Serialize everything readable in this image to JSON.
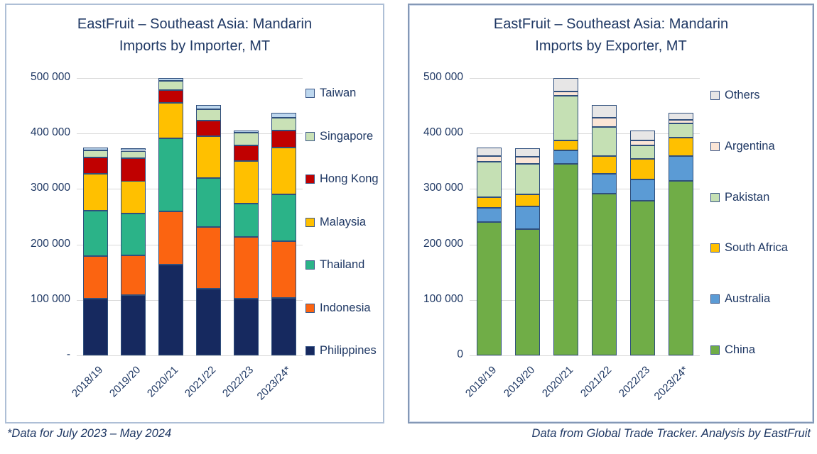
{
  "footer": {
    "left_note": "*Data for July 2023 – May 2024",
    "right_note": "Data from Global Trade Tracker. Analysis by EastFruit"
  },
  "colors": {
    "text": "#1F3864",
    "gridline": "#D9D9D9",
    "bar_stroke": "#2F4F7D",
    "panel_border_left": "#AEBFD6",
    "panel_border_right": "#8498B6"
  },
  "chart_data": [
    {
      "type": "bar",
      "stacked": true,
      "title_line1": "EastFruit – Southeast Asia: Mandarin",
      "title_line2": "Imports by Importer, MT",
      "categories": [
        "2018/19",
        "2019/20",
        "2020/21",
        "2021/22",
        "2022/23",
        "2023/24*"
      ],
      "ylim": [
        0,
        500000
      ],
      "grid": true,
      "legend_position": "right",
      "y_ticks": [
        {
          "value": 500000,
          "label": "500 000"
        },
        {
          "value": 400000,
          "label": "400 000"
        },
        {
          "value": 300000,
          "label": "300 000"
        },
        {
          "value": 200000,
          "label": "200 000"
        },
        {
          "value": 100000,
          "label": "100 000"
        },
        {
          "value": 0,
          "label": "-"
        }
      ],
      "series": [
        {
          "name": "Philippines",
          "color": "#16295F",
          "values": [
            102000,
            109000,
            164000,
            120000,
            102000,
            104000
          ]
        },
        {
          "name": "Indonesia",
          "color": "#FB6411",
          "values": [
            77000,
            71000,
            96000,
            112000,
            112000,
            102000
          ]
        },
        {
          "name": "Thailand",
          "color": "#2BB388",
          "values": [
            82000,
            76000,
            132000,
            88000,
            60000,
            84000
          ]
        },
        {
          "name": "Malaysia",
          "color": "#FFC000",
          "values": [
            66000,
            58000,
            63000,
            75000,
            76000,
            85000
          ]
        },
        {
          "name": "Hong Kong",
          "color": "#C00000",
          "values": [
            30000,
            41000,
            23000,
            28000,
            29000,
            30000
          ]
        },
        {
          "name": "Singapore",
          "color": "#C9E1B6",
          "values": [
            13000,
            14000,
            17000,
            21000,
            22000,
            23000
          ]
        },
        {
          "name": "Taiwan",
          "color": "#BDD7EE",
          "values": [
            5000,
            5000,
            5000,
            7000,
            5000,
            9000
          ]
        }
      ],
      "legend": [
        "Taiwan",
        "Singapore",
        "Hong Kong",
        "Malaysia",
        "Thailand",
        "Indonesia",
        "Philippines"
      ]
    },
    {
      "type": "bar",
      "stacked": true,
      "title_line1": "EastFruit – Southeast Asia: Mandarin",
      "title_line2": "Imports by Exporter, MT",
      "categories": [
        "2018/19",
        "2019/20",
        "2020/21",
        "2021/22",
        "2022/23",
        "2023/24*"
      ],
      "ylim": [
        0,
        500000
      ],
      "grid": true,
      "legend_position": "right",
      "y_ticks": [
        {
          "value": 500000,
          "label": "500 000"
        },
        {
          "value": 400000,
          "label": "400 000"
        },
        {
          "value": 300000,
          "label": "300 000"
        },
        {
          "value": 200000,
          "label": "200 000"
        },
        {
          "value": 100000,
          "label": "100 000"
        },
        {
          "value": 0,
          "label": "0"
        }
      ],
      "series": [
        {
          "name": "China",
          "color": "#70AD47",
          "values": [
            240000,
            228000,
            345000,
            291000,
            279000,
            315000
          ]
        },
        {
          "name": "Australia",
          "color": "#5B9BD5",
          "values": [
            26000,
            40000,
            25000,
            36000,
            38000,
            45000
          ]
        },
        {
          "name": "South Africa",
          "color": "#FFC000",
          "values": [
            19000,
            22000,
            17000,
            32000,
            37000,
            33000
          ]
        },
        {
          "name": "Pakistan",
          "color": "#C5E0B4",
          "values": [
            64000,
            55000,
            81000,
            53000,
            25000,
            25000
          ]
        },
        {
          "name": "Argentina",
          "color": "#FBE5D6",
          "values": [
            10000,
            13000,
            8000,
            17000,
            9000,
            6000
          ]
        },
        {
          "name": "Others",
          "color": "#E7E6E6",
          "values": [
            16000,
            16000,
            24000,
            22000,
            18000,
            13000
          ]
        }
      ],
      "legend": [
        "Others",
        "Argentina",
        "Pakistan",
        "South Africa",
        "Australia",
        "China"
      ]
    }
  ]
}
